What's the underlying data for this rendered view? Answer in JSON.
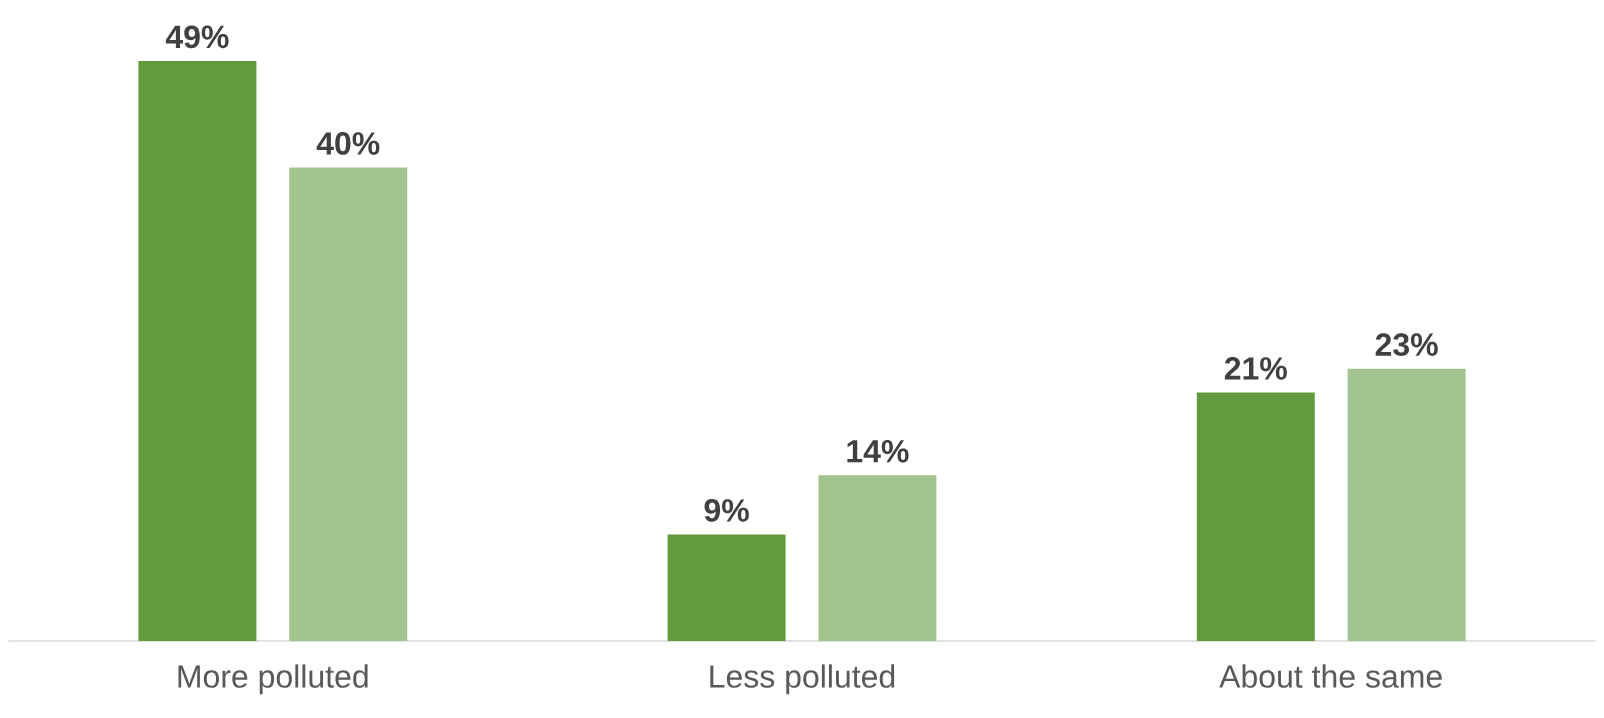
{
  "chart_data": {
    "type": "bar",
    "categories": [
      "More polluted",
      "Less polluted",
      "About the same"
    ],
    "series": [
      {
        "color": "#639a3d",
        "values": [
          49,
          9,
          21
        ],
        "value_labels": [
          "49%",
          "9%",
          "21%"
        ]
      },
      {
        "color": "#a3c48f",
        "values": [
          40,
          14,
          23
        ],
        "value_labels": [
          "40%",
          "14%",
          "23%"
        ]
      }
    ]
  }
}
